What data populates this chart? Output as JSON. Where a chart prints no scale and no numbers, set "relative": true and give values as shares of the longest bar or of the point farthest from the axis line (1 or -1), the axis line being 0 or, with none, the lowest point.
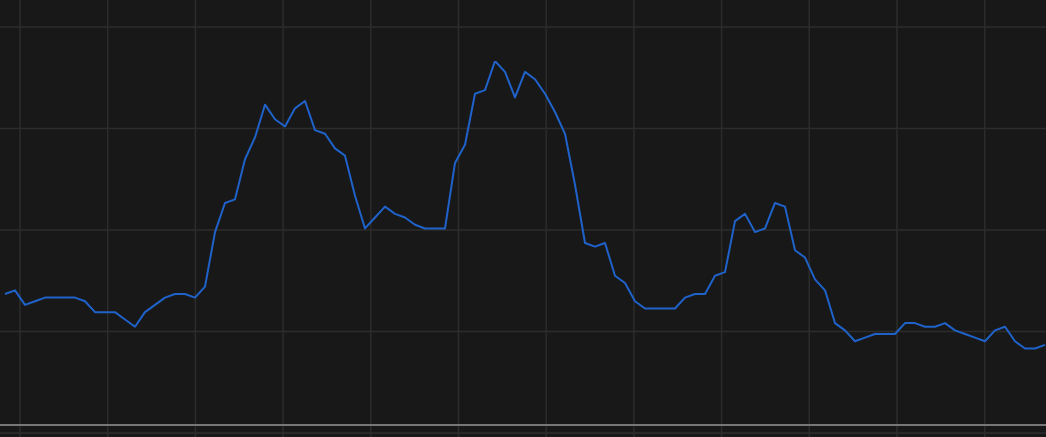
{
  "chart_data": {
    "type": "line",
    "relative": true,
    "grid": true,
    "legend": false,
    "marker": "none",
    "line_style": "solid",
    "categories": [
      null,
      null,
      null,
      null,
      null,
      null,
      null,
      null,
      null,
      null,
      null,
      null,
      null,
      null,
      null,
      null,
      null,
      null,
      null,
      null,
      null,
      null,
      null,
      null,
      null,
      null,
      null,
      null,
      null,
      null,
      null,
      null,
      null,
      null,
      null,
      null,
      null,
      null,
      null,
      null,
      null,
      null,
      null,
      null,
      null,
      null,
      null,
      null,
      null,
      null,
      null,
      null,
      null,
      null,
      null,
      null,
      null,
      null,
      null,
      null,
      null,
      null,
      null,
      null,
      null,
      null,
      null,
      null,
      null,
      null,
      null,
      null,
      null,
      null,
      null,
      null,
      null,
      null,
      null,
      null,
      null,
      null,
      null,
      null,
      null,
      null,
      null,
      null,
      null,
      null,
      null,
      null,
      null,
      null,
      null,
      null,
      null,
      null,
      null,
      null,
      null,
      null,
      null,
      null,
      null
    ],
    "series": [
      {
        "color": "#1f62c9",
        "values": [
          0.36,
          0.37,
          0.33,
          0.34,
          0.35,
          0.35,
          0.35,
          0.35,
          0.34,
          0.31,
          0.31,
          0.31,
          0.29,
          0.27,
          0.31,
          0.33,
          0.35,
          0.36,
          0.36,
          0.35,
          0.38,
          0.53,
          0.61,
          0.62,
          0.73,
          0.79,
          0.88,
          0.84,
          0.82,
          0.87,
          0.89,
          0.81,
          0.8,
          0.76,
          0.74,
          0.63,
          0.54,
          0.57,
          0.6,
          0.58,
          0.57,
          0.55,
          0.54,
          0.54,
          0.54,
          0.72,
          0.77,
          0.91,
          0.92,
          1,
          0.97,
          0.9,
          0.97,
          0.95,
          0.91,
          0.86,
          0.8,
          0.66,
          0.5,
          0.49,
          0.5,
          0.41,
          0.39,
          0.34,
          0.32,
          0.32,
          0.32,
          0.32,
          0.35,
          0.36,
          0.36,
          0.41,
          0.42,
          0.56,
          0.58,
          0.53,
          0.54,
          0.61,
          0.6,
          0.48,
          0.46,
          0.4,
          0.37,
          0.28,
          0.26,
          0.23,
          0.24,
          0.25,
          0.25,
          0.25,
          0.28,
          0.28,
          0.27,
          0.27,
          0.28,
          0.26,
          0.25,
          0.24,
          0.23,
          0.26,
          0.27,
          0.23,
          0.21,
          0.21,
          0.22
        ]
      }
    ]
  }
}
